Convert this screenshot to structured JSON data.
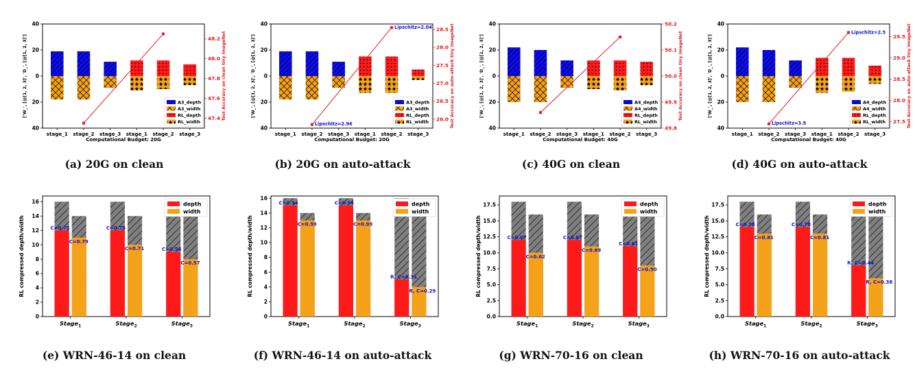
{
  "captions": [
    "(a)  20G on clean",
    "(b)  20G on auto-attack",
    "(c)  40G on clean",
    "(d)  40G on auto-attack",
    "(e)  WRN-46-14 on clean",
    "(f)  WRN-46-14 on auto-attack",
    "(g)  WRN-70-16 on clean",
    "(h)  WRN-70-16 on auto-attack"
  ],
  "colors": {
    "blue": "#0b0bf0",
    "orange": "#f5a21b",
    "red": "#ff1a1a",
    "gray": "#808080",
    "annot": "#1010cc",
    "line": "#e31a1c"
  },
  "chart_data": [
    {
      "type": "bar",
      "categories": [
        "stage_1",
        "stage_2",
        "stage_3",
        "stage_1",
        "stage_2",
        "stage_3"
      ],
      "ylim": [
        -40,
        40
      ],
      "yticks": [
        "40",
        "20",
        "0",
        "20",
        "40"
      ],
      "ylabel": "['W_', [@[1, 2, 3]', 'D_', [@[1, 2, 3]']",
      "xlabel": "Computational Budget: 20G",
      "y2label": "Test Accuracy on clean tiny ImageNet",
      "y2lim": [
        47.3,
        48.35
      ],
      "y2ticks": [
        "47.4",
        "47.6",
        "47.8",
        "48.0",
        "48.2"
      ],
      "series": [
        {
          "name": "A3_depth",
          "values": [
            19,
            19,
            11,
            null,
            null,
            null
          ]
        },
        {
          "name": "A3_width",
          "values": [
            -18,
            -18,
            -9,
            null,
            null,
            null
          ]
        },
        {
          "name": "RL_depth",
          "values": [
            null,
            null,
            null,
            12,
            12,
            9
          ]
        },
        {
          "name": "RL_width",
          "values": [
            null,
            null,
            null,
            -11,
            -10,
            -7
          ]
        }
      ],
      "accuracy": {
        "x": [
          1,
          4
        ],
        "y": [
          47.35,
          48.25
        ]
      },
      "annotations": []
    },
    {
      "type": "bar",
      "categories": [
        "stage_1",
        "stage_2",
        "stage_3",
        "stage_1",
        "stage_2",
        "stage_3"
      ],
      "ylim": [
        -40,
        40
      ],
      "yticks": [
        "40",
        "20",
        "0",
        "20",
        "40"
      ],
      "ylabel": "['W_', [@[1, 2, 3]', 'D_', [@[1, 2, 3]']",
      "xlabel": "Computational Budget: 20G",
      "y2label": "Test Accuracy on auto-attack tiny ImageNet",
      "y2lim": [
        25.75,
        28.65
      ],
      "y2ticks": [
        "26.0",
        "26.5",
        "27.0",
        "27.5",
        "28.0",
        "28.5"
      ],
      "series": [
        {
          "name": "A3_depth",
          "values": [
            19,
            19,
            11,
            null,
            null,
            null
          ]
        },
        {
          "name": "A3_width",
          "values": [
            -18,
            -18,
            -9,
            null,
            null,
            null
          ]
        },
        {
          "name": "RL_depth",
          "values": [
            null,
            null,
            null,
            15,
            15,
            5
          ]
        },
        {
          "name": "RL_width",
          "values": [
            null,
            null,
            null,
            -13,
            -13,
            -3
          ]
        }
      ],
      "accuracy": {
        "x": [
          1,
          4
        ],
        "y": [
          25.85,
          28.55
        ]
      },
      "annotations": [
        "Lipschitz=2.96",
        "Lipschitz=2.04"
      ]
    },
    {
      "type": "bar",
      "categories": [
        "stage_1",
        "stage_2",
        "stage_3",
        "stage_1",
        "stage_2",
        "stage_3"
      ],
      "ylim": [
        -40,
        40
      ],
      "yticks": [
        "40",
        "20",
        "0",
        "20",
        "40"
      ],
      "ylabel": "['W_', [@[1, 2, 3]', 'D_', [@[1, 2, 3]']",
      "xlabel": "Computational Budget: 40G",
      "y2label": "Test Accuracy on clean tiny ImageNet",
      "y2lim": [
        49.8,
        50.2
      ],
      "y2ticks": [
        "49.8",
        "49.9",
        "50.0",
        "50.1",
        "50.2"
      ],
      "series": [
        {
          "name": "A4_depth",
          "values": [
            22,
            20,
            12,
            null,
            null,
            null
          ]
        },
        {
          "name": "A4_width",
          "values": [
            -20,
            -20,
            -9,
            null,
            null,
            null
          ]
        },
        {
          "name": "RL_depth",
          "values": [
            null,
            null,
            null,
            12,
            12,
            11
          ]
        },
        {
          "name": "RL_width",
          "values": [
            null,
            null,
            null,
            -10,
            -11,
            -7
          ]
        }
      ],
      "accuracy": {
        "x": [
          1,
          4
        ],
        "y": [
          49.86,
          50.15
        ]
      },
      "annotations": []
    },
    {
      "type": "bar",
      "categories": [
        "stage_1",
        "stage_2",
        "stage_3",
        "stage_1",
        "stage_2",
        "stage_3"
      ],
      "ylim": [
        -40,
        40
      ],
      "yticks": [
        "40",
        "20",
        "0",
        "20",
        "40"
      ],
      "ylabel": "['W_', [@[1, 2, 3]', 'D_', [@[1, 2, 3]']",
      "xlabel": "Computational Budget: 40G",
      "y2label": "Test Accuracy on auto-attack tiny ImageNet",
      "y2lim": [
        27.35,
        29.8
      ],
      "y2ticks": [
        "27.5",
        "28.0",
        "28.5",
        "29.0",
        "29.5"
      ],
      "series": [
        {
          "name": "A4_depth",
          "values": [
            22,
            20,
            12,
            null,
            null,
            null
          ]
        },
        {
          "name": "A4_width",
          "values": [
            -20,
            -20,
            -9,
            null,
            null,
            null
          ]
        },
        {
          "name": "RL_depth",
          "values": [
            null,
            null,
            null,
            14,
            14,
            8
          ]
        },
        {
          "name": "RL_width",
          "values": [
            null,
            null,
            null,
            -13,
            -12,
            -6
          ]
        }
      ],
      "accuracy": {
        "x": [
          1,
          4
        ],
        "y": [
          27.45,
          29.6
        ]
      },
      "annotations": [
        "Lipschitz=3.9",
        "Lipschitz=2.5"
      ]
    },
    {
      "type": "bar",
      "categories": [
        "Stage1",
        "Stage2",
        "Stage3"
      ],
      "ylim": [
        0,
        16.8
      ],
      "yticks": [
        "0",
        "2",
        "4",
        "6",
        "8",
        "10",
        "12",
        "14",
        "16"
      ],
      "ylabel": "RL compressed depth/width",
      "legend": [
        "depth",
        "width"
      ],
      "original": {
        "depth": [
          16,
          16,
          16
        ],
        "width": [
          14,
          14,
          14
        ]
      },
      "series": [
        {
          "name": "depth",
          "values": [
            12,
            12,
            9
          ]
        },
        {
          "name": "width",
          "values": [
            11,
            10,
            8
          ]
        }
      ],
      "annotations": {
        "depth": [
          "C=0.75",
          "C=0.75",
          "C=0.56"
        ],
        "width": [
          "C=0.79",
          "C=0.71",
          "C=0.57"
        ]
      }
    },
    {
      "type": "bar",
      "categories": [
        "Stage1",
        "Stage2",
        "Stage3"
      ],
      "ylim": [
        0,
        16.3
      ],
      "yticks": [
        "0",
        "2",
        "4",
        "6",
        "8",
        "10",
        "12",
        "14",
        "16"
      ],
      "ylabel": "RL compressed depth/width",
      "legend": [
        "depth",
        "width"
      ],
      "original": {
        "depth": [
          16,
          16,
          16
        ],
        "width": [
          14,
          14,
          14
        ]
      },
      "series": [
        {
          "name": "depth",
          "values": [
            15,
            15,
            5
          ]
        },
        {
          "name": "width",
          "values": [
            13,
            13,
            4
          ]
        }
      ],
      "annotations": {
        "depth": [
          "C=0.94",
          "C=0.94",
          "R, C=0.31"
        ],
        "width": [
          "C=0.93",
          "C=0.93",
          "R, C=0.29"
        ]
      }
    },
    {
      "type": "bar",
      "categories": [
        "Stage1",
        "Stage2",
        "Stage3"
      ],
      "ylim": [
        0,
        18.9
      ],
      "yticks": [
        "0.0",
        "2.5",
        "5.0",
        "7.5",
        "10.0",
        "12.5",
        "15.0",
        "17.5"
      ],
      "ylabel": "RL compressed depth/width",
      "legend": [
        "depth",
        "width"
      ],
      "original": {
        "depth": [
          18,
          18,
          18
        ],
        "width": [
          16,
          16,
          16
        ]
      },
      "series": [
        {
          "name": "depth",
          "values": [
            12,
            12,
            11
          ]
        },
        {
          "name": "width",
          "values": [
            10,
            11,
            8
          ]
        }
      ],
      "annotations": {
        "depth": [
          "C=0.67",
          "C=0.67",
          "C=0.61"
        ],
        "width": [
          "C=0.62",
          "C=0.69",
          "C=0.50"
        ]
      }
    },
    {
      "type": "bar",
      "categories": [
        "Stage1",
        "Stage2",
        "Stage3"
      ],
      "ylim": [
        0,
        18.9
      ],
      "yticks": [
        "0.0",
        "2.5",
        "5.0",
        "7.5",
        "10.0",
        "12.5",
        "15.0",
        "17.5"
      ],
      "ylabel": "RL compressed depth/width",
      "legend": [
        "depth",
        "width"
      ],
      "original": {
        "depth": [
          18,
          18,
          18
        ],
        "width": [
          16,
          16,
          16
        ]
      },
      "series": [
        {
          "name": "depth",
          "values": [
            14,
            14,
            8
          ]
        },
        {
          "name": "width",
          "values": [
            13,
            13,
            6
          ]
        }
      ],
      "annotations": {
        "depth": [
          "C=0.78",
          "C=0.78",
          "R, C=0.44"
        ],
        "width": [
          "C=0.81",
          "C=0.81",
          "R, C=0.38"
        ]
      }
    }
  ]
}
